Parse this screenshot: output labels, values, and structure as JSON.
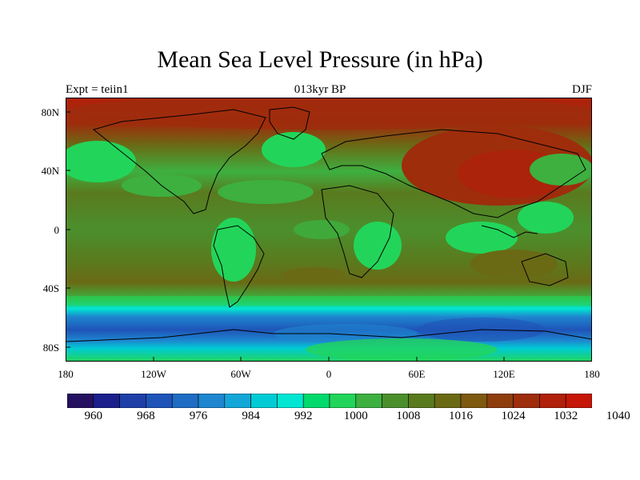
{
  "title": "Mean Sea Level Pressure (in hPa)",
  "subtitle": "013kyr BP",
  "left_label": "Expt = teiin1",
  "right_label": "DJF",
  "y_ticks": [
    "80N",
    "40N",
    "0",
    "40S",
    "80S"
  ],
  "x_ticks": [
    "180",
    "120W",
    "60W",
    "0",
    "60E",
    "120E",
    "180"
  ],
  "colorbar": {
    "colors": [
      "#24105e",
      "#1a1f8c",
      "#1f3fa8",
      "#1e54b8",
      "#1f6cc4",
      "#1e86cf",
      "#12a7d8",
      "#00cbd4",
      "#00e6d2",
      "#00d96b",
      "#22d55a",
      "#3db040",
      "#4b8f2c",
      "#5a7a1e",
      "#6a6a15",
      "#7d5a10",
      "#8e3d0d",
      "#9e2d0c",
      "#b0200a",
      "#c51607"
    ],
    "labels": [
      "960",
      "968",
      "976",
      "984",
      "992",
      "1000",
      "1008",
      "1016",
      "1024",
      "1032",
      "1040"
    ]
  },
  "map": {
    "x_range": [
      -180,
      180
    ],
    "y_range": [
      -90,
      90
    ],
    "projection": "cylindrical-equidistant"
  }
}
